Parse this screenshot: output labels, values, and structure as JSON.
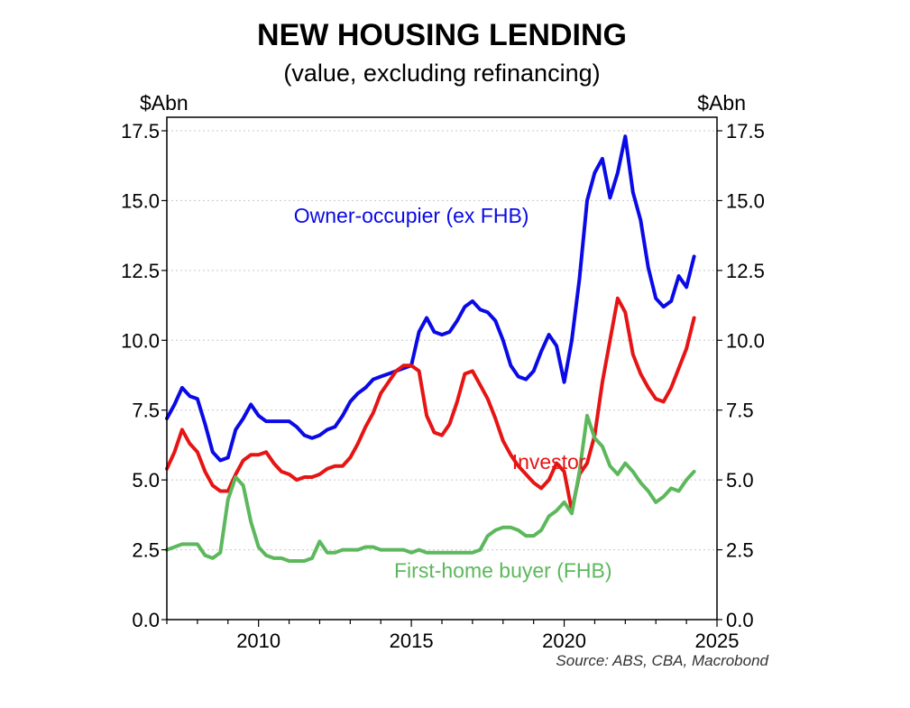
{
  "chart_data": {
    "type": "line",
    "title": "NEW HOUSING LENDING",
    "subtitle": "(value, excluding refinancing)",
    "ylabel_left": "$Abn",
    "ylabel_right": "$Abn",
    "source": "Source: ABS, CBA, Macrobond",
    "ylim": [
      0,
      17.5
    ],
    "xlim": [
      2007.0,
      2025.0
    ],
    "y_ticks": [
      "0.0",
      "2.5",
      "5.0",
      "7.5",
      "10.0",
      "12.5",
      "15.0",
      "17.5"
    ],
    "x_ticks": [
      "2010",
      "2015",
      "2020",
      "2025"
    ],
    "grid": "horizontal dotted",
    "series": [
      {
        "name": "Owner-occupier (ex FHB)",
        "color": "#0a0ae6",
        "x": [
          2007.0,
          2007.25,
          2007.5,
          2007.75,
          2008.0,
          2008.25,
          2008.5,
          2008.75,
          2009.0,
          2009.25,
          2009.5,
          2009.75,
          2010.0,
          2010.25,
          2010.5,
          2010.75,
          2011.0,
          2011.25,
          2011.5,
          2011.75,
          2012.0,
          2012.25,
          2012.5,
          2012.75,
          2013.0,
          2013.25,
          2013.5,
          2013.75,
          2014.0,
          2014.25,
          2014.5,
          2014.75,
          2015.0,
          2015.25,
          2015.5,
          2015.75,
          2016.0,
          2016.25,
          2016.5,
          2016.75,
          2017.0,
          2017.25,
          2017.5,
          2017.75,
          2018.0,
          2018.25,
          2018.5,
          2018.75,
          2019.0,
          2019.25,
          2019.5,
          2019.75,
          2020.0,
          2020.25,
          2020.5,
          2020.75,
          2021.0,
          2021.25,
          2021.5,
          2021.75,
          2022.0,
          2022.25,
          2022.5,
          2022.75,
          2023.0,
          2023.25,
          2023.5,
          2023.75,
          2024.0,
          2024.25
        ],
        "values": [
          7.2,
          7.7,
          8.3,
          8.0,
          7.9,
          7.0,
          6.0,
          5.7,
          5.8,
          6.8,
          7.2,
          7.7,
          7.3,
          7.1,
          7.1,
          7.1,
          7.1,
          6.9,
          6.6,
          6.5,
          6.6,
          6.8,
          6.9,
          7.3,
          7.8,
          8.1,
          8.3,
          8.6,
          8.7,
          8.8,
          8.9,
          9.0,
          9.1,
          10.3,
          10.8,
          10.3,
          10.2,
          10.3,
          10.7,
          11.2,
          11.4,
          11.1,
          11.0,
          10.7,
          10.0,
          9.1,
          8.7,
          8.6,
          8.9,
          9.6,
          10.2,
          9.8,
          8.5,
          10.0,
          12.2,
          15.0,
          16.0,
          16.5,
          15.1,
          16.0,
          17.3,
          15.3,
          14.3,
          12.6,
          11.5,
          11.2,
          11.4,
          12.3,
          11.9,
          13.0
        ]
      },
      {
        "name": "Investor",
        "color": "#e61414",
        "x": [
          2007.0,
          2007.25,
          2007.5,
          2007.75,
          2008.0,
          2008.25,
          2008.5,
          2008.75,
          2009.0,
          2009.25,
          2009.5,
          2009.75,
          2010.0,
          2010.25,
          2010.5,
          2010.75,
          2011.0,
          2011.25,
          2011.5,
          2011.75,
          2012.0,
          2012.25,
          2012.5,
          2012.75,
          2013.0,
          2013.25,
          2013.5,
          2013.75,
          2014.0,
          2014.25,
          2014.5,
          2014.75,
          2015.0,
          2015.25,
          2015.5,
          2015.75,
          2016.0,
          2016.25,
          2016.5,
          2016.75,
          2017.0,
          2017.25,
          2017.5,
          2017.75,
          2018.0,
          2018.25,
          2018.5,
          2018.75,
          2019.0,
          2019.25,
          2019.5,
          2019.75,
          2020.0,
          2020.25,
          2020.5,
          2020.75,
          2021.0,
          2021.25,
          2021.5,
          2021.75,
          2022.0,
          2022.25,
          2022.5,
          2022.75,
          2023.0,
          2023.25,
          2023.5,
          2023.75,
          2024.0,
          2024.25
        ],
        "values": [
          5.4,
          6.0,
          6.8,
          6.3,
          6.0,
          5.3,
          4.8,
          4.6,
          4.6,
          5.2,
          5.7,
          5.9,
          5.9,
          6.0,
          5.6,
          5.3,
          5.2,
          5.0,
          5.1,
          5.1,
          5.2,
          5.4,
          5.5,
          5.5,
          5.8,
          6.3,
          6.9,
          7.4,
          8.1,
          8.5,
          8.9,
          9.1,
          9.1,
          8.9,
          7.3,
          6.7,
          6.6,
          7.0,
          7.8,
          8.8,
          8.9,
          8.4,
          7.9,
          7.2,
          6.4,
          5.9,
          5.5,
          5.2,
          4.9,
          4.7,
          5.0,
          5.6,
          5.3,
          3.9,
          5.2,
          5.6,
          6.6,
          8.5,
          10.0,
          11.5,
          11.0,
          9.5,
          8.8,
          8.3,
          7.9,
          7.8,
          8.3,
          9.0,
          9.7,
          10.8
        ]
      },
      {
        "name": "First-home buyer (FHB)",
        "color": "#5cb85c",
        "x": [
          2007.0,
          2007.25,
          2007.5,
          2007.75,
          2008.0,
          2008.25,
          2008.5,
          2008.75,
          2009.0,
          2009.25,
          2009.5,
          2009.75,
          2010.0,
          2010.25,
          2010.5,
          2010.75,
          2011.0,
          2011.25,
          2011.5,
          2011.75,
          2012.0,
          2012.25,
          2012.5,
          2012.75,
          2013.0,
          2013.25,
          2013.5,
          2013.75,
          2014.0,
          2014.25,
          2014.5,
          2014.75,
          2015.0,
          2015.25,
          2015.5,
          2015.75,
          2016.0,
          2016.25,
          2016.5,
          2016.75,
          2017.0,
          2017.25,
          2017.5,
          2017.75,
          2018.0,
          2018.25,
          2018.5,
          2018.75,
          2019.0,
          2019.25,
          2019.5,
          2019.75,
          2020.0,
          2020.25,
          2020.5,
          2020.75,
          2021.0,
          2021.25,
          2021.5,
          2021.75,
          2022.0,
          2022.25,
          2022.5,
          2022.75,
          2023.0,
          2023.25,
          2023.5,
          2023.75,
          2024.0,
          2024.25
        ],
        "values": [
          2.5,
          2.6,
          2.7,
          2.7,
          2.7,
          2.3,
          2.2,
          2.4,
          4.3,
          5.1,
          4.8,
          3.5,
          2.6,
          2.3,
          2.2,
          2.2,
          2.1,
          2.1,
          2.1,
          2.2,
          2.8,
          2.4,
          2.4,
          2.5,
          2.5,
          2.5,
          2.6,
          2.6,
          2.5,
          2.5,
          2.5,
          2.5,
          2.4,
          2.5,
          2.4,
          2.4,
          2.4,
          2.4,
          2.4,
          2.4,
          2.4,
          2.5,
          3.0,
          3.2,
          3.3,
          3.3,
          3.2,
          3.0,
          3.0,
          3.2,
          3.7,
          3.9,
          4.2,
          3.8,
          5.3,
          7.3,
          6.5,
          6.2,
          5.5,
          5.2,
          5.6,
          5.3,
          4.9,
          4.6,
          4.2,
          4.4,
          4.7,
          4.6,
          5.0,
          5.3
        ]
      }
    ],
    "annotations": [
      {
        "text": "Owner-occupier (ex FHB)",
        "color": "#0a0ae6",
        "x": 2015.0,
        "y": 14.2
      },
      {
        "text": "Investor",
        "color": "#e61414",
        "x": 2019.5,
        "y": 5.4
      },
      {
        "text": "First-home buyer (FHB)",
        "color": "#5cb85c",
        "x": 2018.0,
        "y": 1.5
      }
    ]
  }
}
